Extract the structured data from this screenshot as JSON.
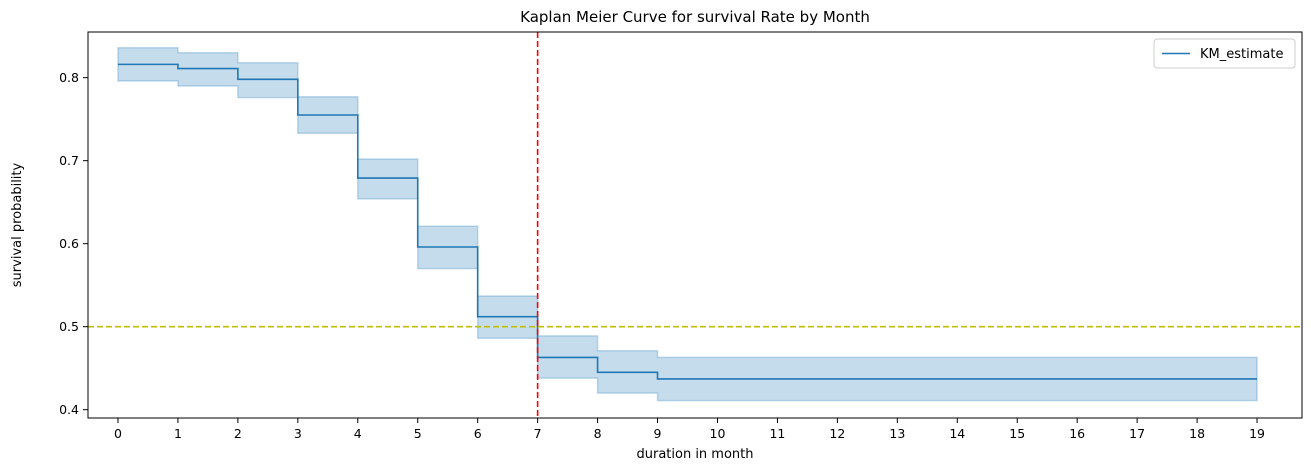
{
  "chart_data": {
    "type": "line",
    "title": "Kaplan Meier Curve for survival Rate by Month",
    "xlabel": "duration in month",
    "ylabel": "survival probability",
    "xlim": [
      -0.5,
      19.75
    ],
    "ylim": [
      0.39,
      0.855
    ],
    "xticks": [
      0,
      1,
      2,
      3,
      4,
      5,
      6,
      7,
      8,
      9,
      10,
      11,
      12,
      13,
      14,
      15,
      16,
      17,
      18,
      19
    ],
    "yticks": [
      0.4,
      0.5,
      0.6,
      0.7,
      0.8
    ],
    "ytick_labels": [
      "0.4",
      "0.5",
      "0.6",
      "0.7",
      "0.8"
    ],
    "grid": false,
    "legend_position": "top-right",
    "series": [
      {
        "name": "KM_estimate",
        "step": "post",
        "color": "#1f77b4",
        "x": [
          0,
          1,
          2,
          3,
          4,
          5,
          6,
          7,
          8,
          9,
          19
        ],
        "y": [
          0.816,
          0.811,
          0.798,
          0.755,
          0.679,
          0.596,
          0.512,
          0.463,
          0.445,
          0.437,
          0.437
        ],
        "ci_lower": [
          0.796,
          0.79,
          0.776,
          0.733,
          0.654,
          0.57,
          0.486,
          0.438,
          0.42,
          0.411,
          0.411
        ],
        "ci_upper": [
          0.836,
          0.83,
          0.818,
          0.777,
          0.702,
          0.621,
          0.537,
          0.489,
          0.471,
          0.463,
          0.463
        ]
      }
    ],
    "reference_lines": [
      {
        "orientation": "vertical",
        "value": 7,
        "color": "#ff0000",
        "style": "dashed"
      },
      {
        "orientation": "horizontal",
        "value": 0.5,
        "color": "#bfbf00",
        "style": "dashed"
      }
    ]
  }
}
